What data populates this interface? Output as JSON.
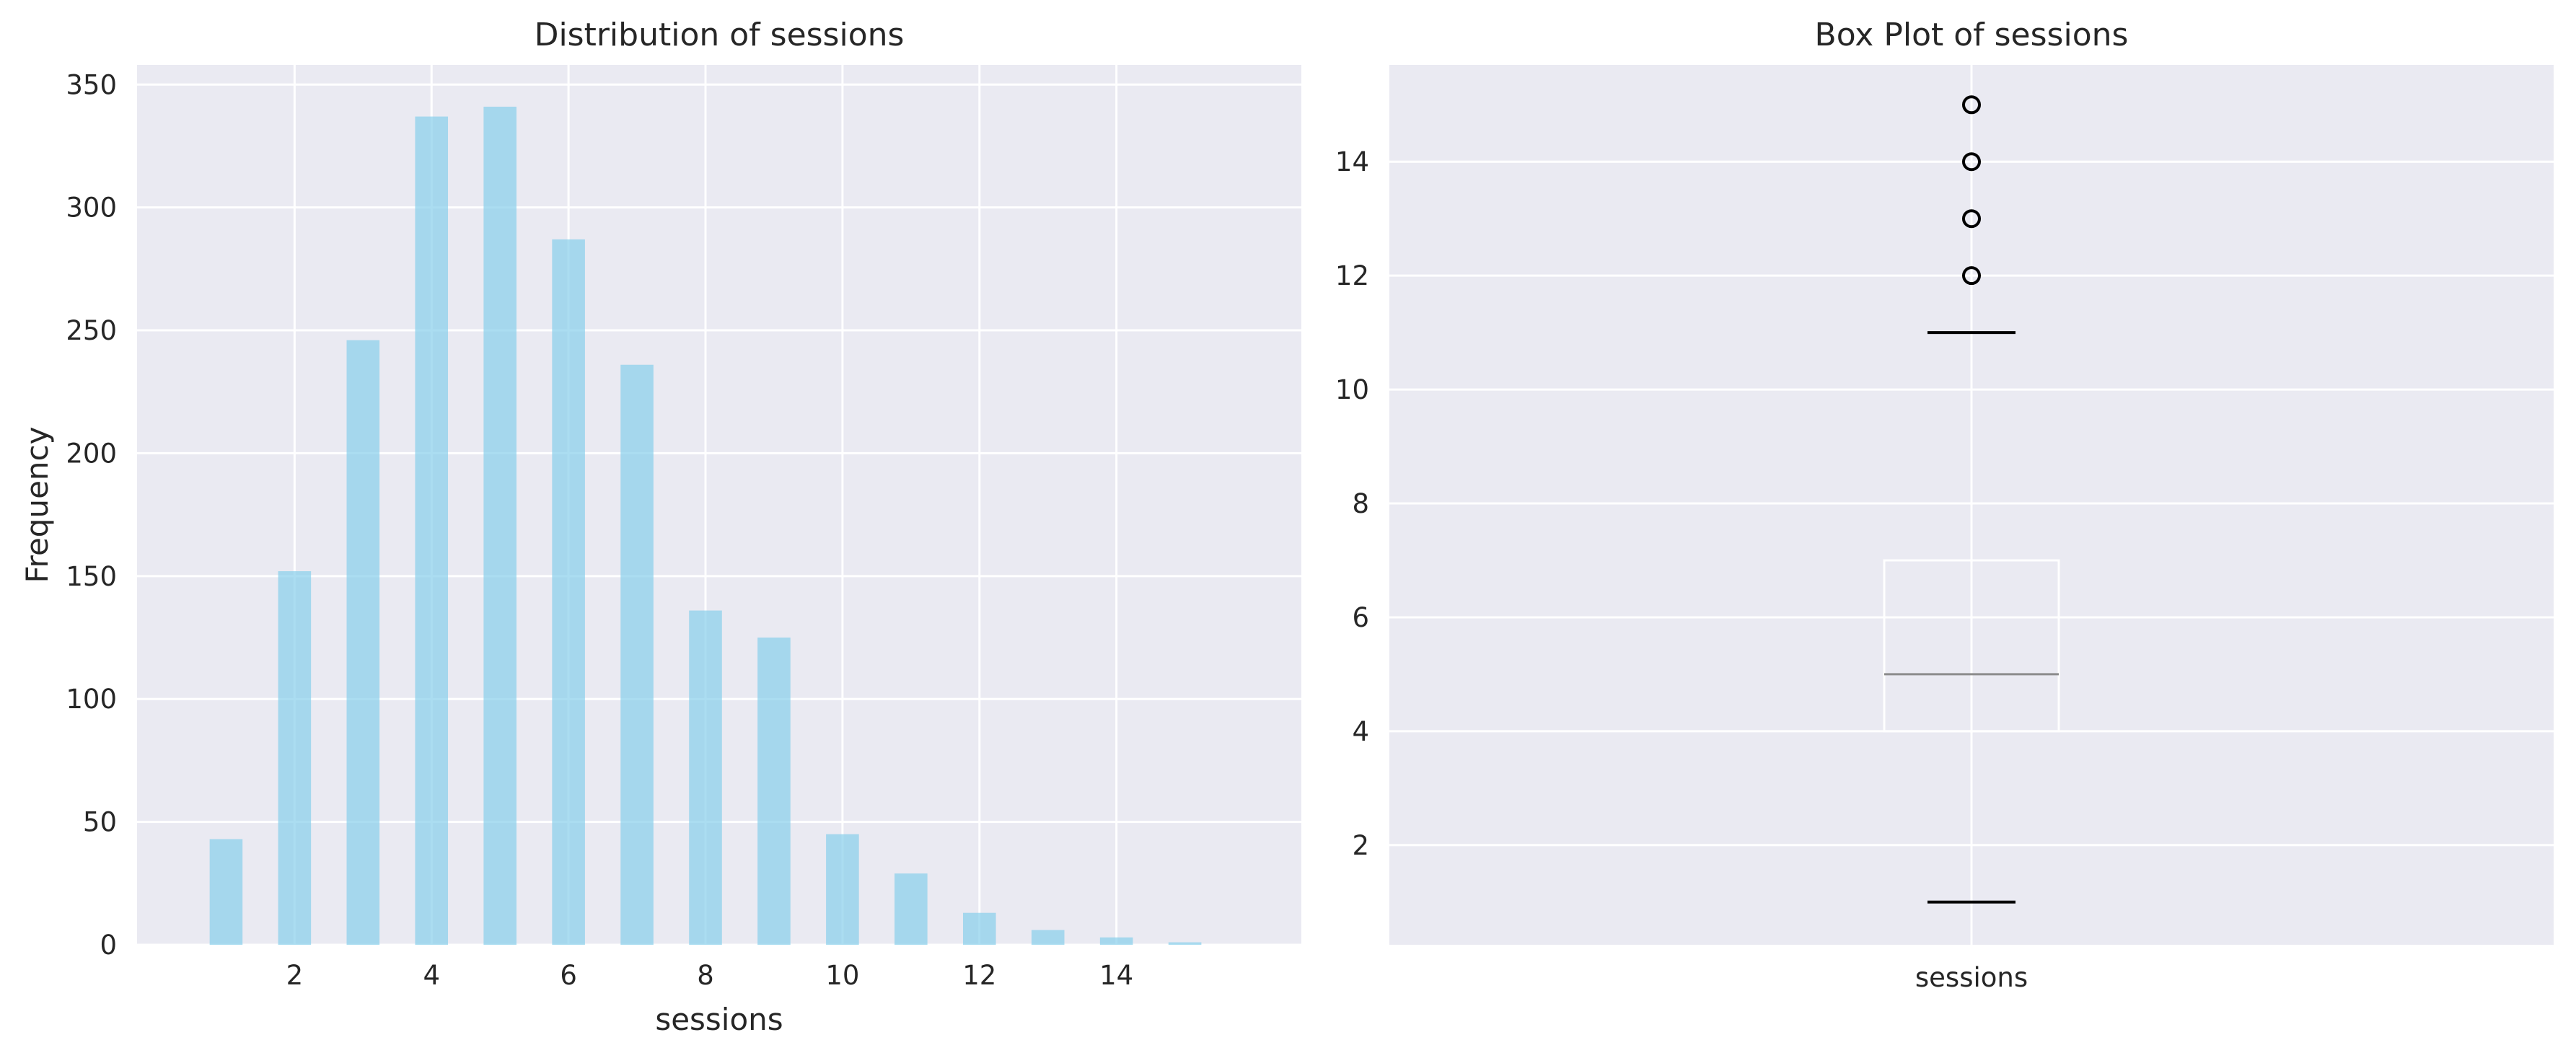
{
  "chart_data": [
    {
      "type": "bar",
      "title": "Distribution of sessions",
      "xlabel": "sessions",
      "ylabel": "Frequency",
      "x": [
        1,
        2,
        3,
        4,
        5,
        6,
        7,
        8,
        9,
        10,
        11,
        12,
        13,
        14,
        15
      ],
      "values": [
        43,
        152,
        246,
        337,
        341,
        287,
        236,
        136,
        125,
        45,
        29,
        13,
        6,
        3,
        1
      ],
      "xticks": [
        2,
        4,
        6,
        8,
        10,
        12,
        14
      ],
      "yticks": [
        0,
        50,
        100,
        150,
        200,
        250,
        300,
        350
      ],
      "xlim": [
        -0.3,
        16.7
      ],
      "ylim": [
        0,
        358
      ],
      "grid": true,
      "bar_color": "#87ceeb"
    },
    {
      "type": "box",
      "title": "Box Plot of sessions",
      "categories": [
        "sessions"
      ],
      "whisker_low": 1,
      "q1": 4,
      "median": 5,
      "q3": 7,
      "whisker_high": 11,
      "outliers": [
        12,
        13,
        14,
        15
      ],
      "yticks": [
        2,
        4,
        6,
        8,
        10,
        12,
        14
      ],
      "ylim": [
        0.25,
        15.7
      ],
      "grid": true
    }
  ]
}
